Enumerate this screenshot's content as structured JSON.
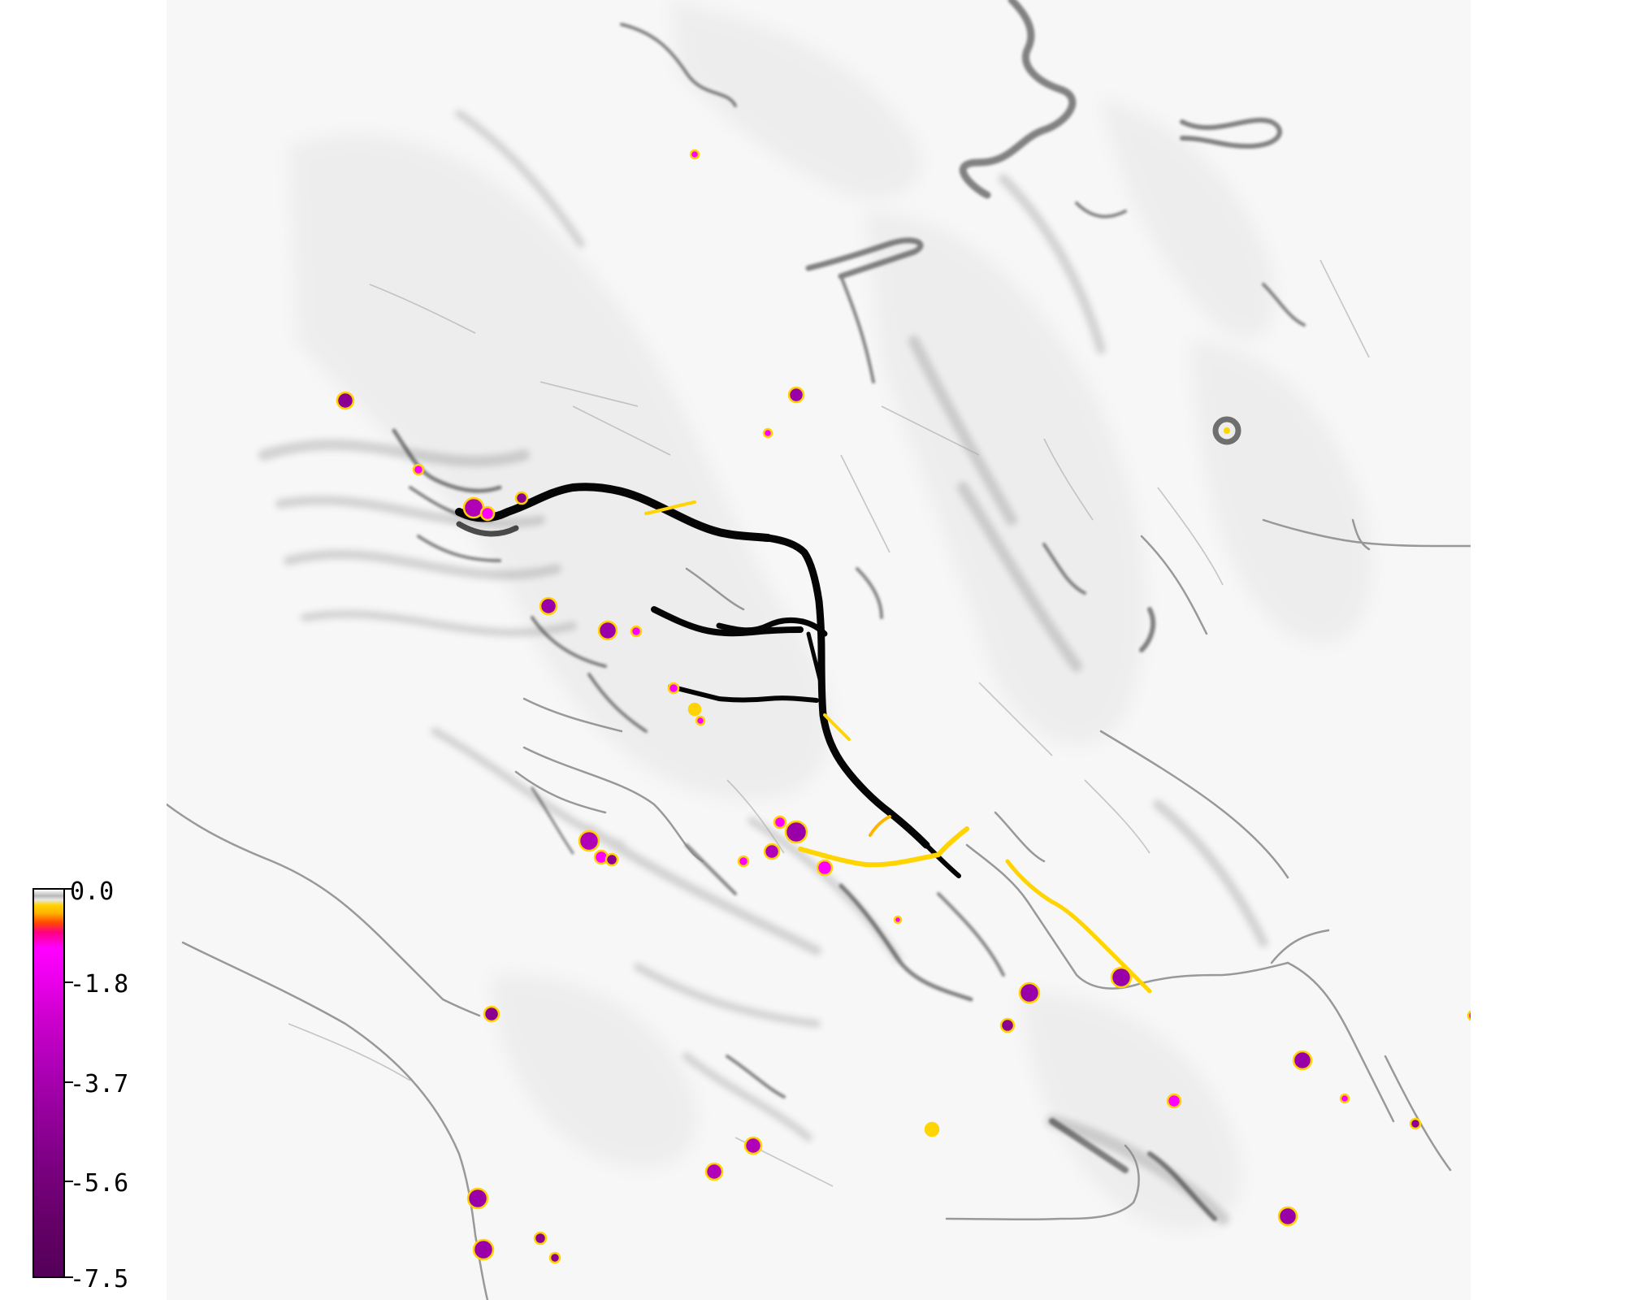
{
  "map": {
    "theme": "grayscale shaded-relief background with colored point overlay",
    "background_color": "#ffffff",
    "relief_color": "#1a1a1a"
  },
  "legend": {
    "type": "colorbar",
    "orientation": "vertical",
    "placement": "bottom-left",
    "ticks": [
      {
        "label": "0.0",
        "value": 0.0
      },
      {
        "label": "-1.8",
        "value": -1.8
      },
      {
        "label": "-3.7",
        "value": -3.7
      },
      {
        "label": "-5.6",
        "value": -5.6
      },
      {
        "label": "-7.5",
        "value": -7.5
      }
    ],
    "colors": [
      "#ffffff",
      "#b8b8b8",
      "#ffd400",
      "#ff4a00",
      "#ff00ff",
      "#b000b8",
      "#540058"
    ]
  }
}
